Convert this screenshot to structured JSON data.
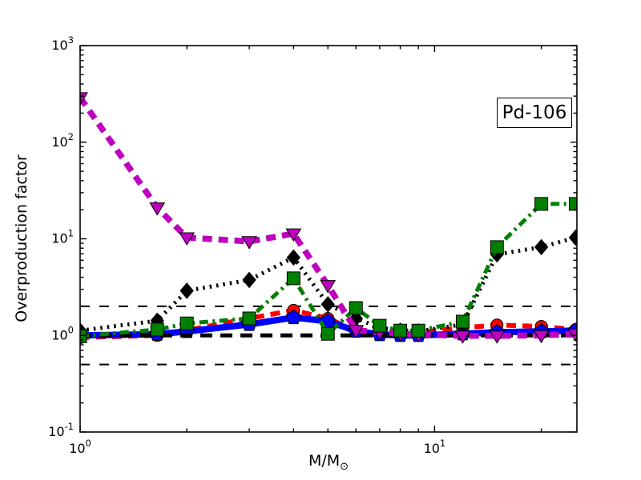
{
  "figure": {
    "background": "#ffffff",
    "annotation": "Pd-106",
    "xlabel": "M/M",
    "xlabel_subscript": "⊙",
    "ylabel": "Overproduction factor"
  },
  "chart_data": {
    "type": "line",
    "title": "",
    "annotation": "Pd-106",
    "xlabel": "M/M_sun",
    "ylabel": "Overproduction factor",
    "x_scale": "log",
    "y_scale": "log",
    "xlim": [
      1,
      25.2
    ],
    "ylim": [
      0.1,
      1000
    ],
    "grid": false,
    "legend": "none",
    "x_major_ticks": [
      {
        "value": 1,
        "base": "10",
        "exp": "0"
      },
      {
        "value": 10,
        "base": "10",
        "exp": "1"
      }
    ],
    "x_minor_ticks": [
      2,
      3,
      4,
      5,
      6,
      7,
      8,
      9,
      20
    ],
    "y_major_ticks": [
      {
        "value": 0.1,
        "base": "10",
        "exp": "-1"
      },
      {
        "value": 1,
        "base": "10",
        "exp": "0"
      },
      {
        "value": 10,
        "base": "10",
        "exp": "1"
      },
      {
        "value": 100,
        "base": "10",
        "exp": "2"
      },
      {
        "value": 1000,
        "base": "10",
        "exp": "3"
      }
    ],
    "y_minor_multipliers": [
      2,
      3,
      4,
      5,
      6,
      7,
      8,
      9
    ],
    "reference_lines": [
      {
        "y": 2.0,
        "style": "thin-dashed",
        "color": "#000000"
      },
      {
        "y": 1.0,
        "style": "thick-dashed",
        "color": "#000000"
      },
      {
        "y": 0.5,
        "style": "thin-dashed",
        "color": "#000000"
      }
    ],
    "x": [
      1,
      1.65,
      2,
      3,
      4,
      5,
      6,
      7,
      8,
      9,
      12,
      15,
      20,
      25
    ],
    "series": [
      {
        "name": "red-dashed-circles",
        "color": "#ff0000",
        "linestyle": "dashed",
        "marker": "circle",
        "values": [
          0.95,
          1.0,
          1.13,
          1.5,
          1.82,
          1.5,
          1.12,
          1.05,
          1.05,
          1.07,
          1.2,
          1.28,
          1.24,
          1.15
        ]
      },
      {
        "name": "blue-solid-pentagons",
        "color": "#0000ff",
        "linestyle": "solid",
        "marker": "pentagon",
        "values": [
          1.0,
          1.03,
          1.1,
          1.3,
          1.53,
          1.4,
          1.11,
          1.02,
          1.0,
          1.0,
          1.04,
          1.08,
          1.1,
          1.12
        ]
      },
      {
        "name": "black-dotted-diamonds",
        "color": "#000000",
        "linestyle": "dotted",
        "marker": "diamond",
        "values": [
          1.12,
          1.42,
          2.9,
          3.75,
          6.4,
          2.1,
          1.5,
          1.2,
          1.12,
          1.1,
          1.3,
          6.9,
          8.2,
          10.3
        ]
      },
      {
        "name": "magenta-dashed-triangles",
        "color": "#bf00bf",
        "linestyle": "dashed-thick",
        "marker": "triangle-down",
        "values": [
          290,
          21,
          10.3,
          9.4,
          11.3,
          3.3,
          1.13,
          1.08,
          1.04,
          1.02,
          0.99,
          0.99,
          1.0,
          1.04
        ]
      },
      {
        "name": "green-dashdot-squares",
        "color": "#008000",
        "linestyle": "dashdot",
        "marker": "square",
        "values": [
          0.98,
          1.15,
          1.33,
          1.5,
          3.9,
          1.04,
          1.92,
          1.26,
          1.12,
          1.12,
          1.39,
          8.2,
          23.0,
          23.0
        ]
      }
    ]
  }
}
